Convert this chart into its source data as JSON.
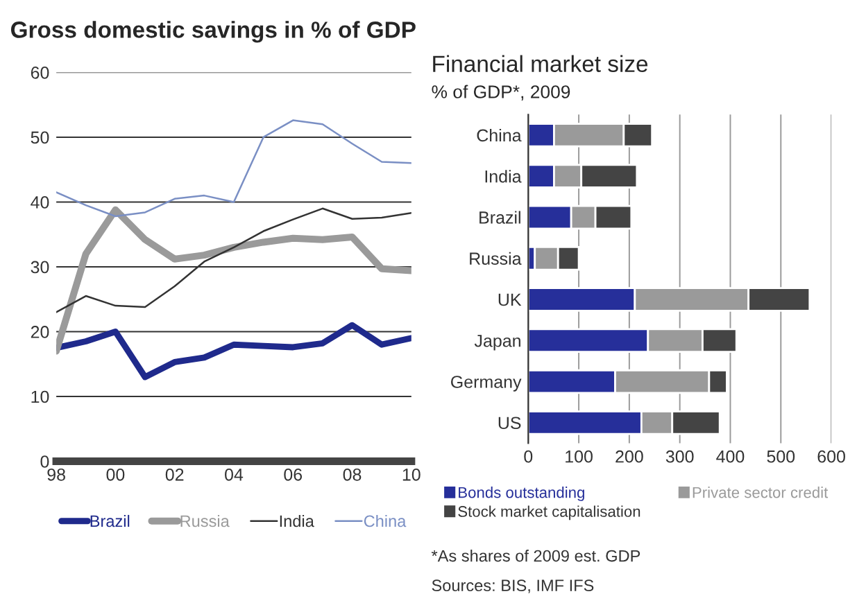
{
  "chart_data": [
    {
      "type": "line",
      "title": "Gross domestic savings in % of GDP",
      "x": [
        1998,
        1999,
        2000,
        2001,
        2002,
        2003,
        2004,
        2005,
        2006,
        2007,
        2008,
        2009,
        2010
      ],
      "series": [
        {
          "name": "Brazil",
          "color": "#1f2a8c",
          "values": [
            17.5,
            18.5,
            20,
            13,
            15.3,
            16,
            18,
            17.8,
            17.6,
            18.2,
            21,
            18,
            19
          ]
        },
        {
          "name": "Russia",
          "color": "#9a9a9a",
          "values": [
            17,
            32,
            38.8,
            34.2,
            31.2,
            31.8,
            33,
            33.8,
            34.4,
            34.2,
            34.6,
            29.7,
            29.4
          ]
        },
        {
          "name": "India",
          "color": "#333333",
          "values": [
            23,
            25.5,
            24,
            23.8,
            27,
            30.8,
            33,
            35.5,
            37.3,
            39,
            37.4,
            37.6,
            38.3
          ]
        },
        {
          "name": "China",
          "color": "#7a8fc4",
          "values": [
            41.5,
            39.5,
            37.8,
            38.4,
            40.5,
            41,
            40,
            50,
            52.6,
            52,
            49,
            46.2,
            46
          ]
        }
      ],
      "xlim": [
        1998,
        2010
      ],
      "xticks": [
        {
          "value": 1998,
          "label": "98"
        },
        {
          "value": 2000,
          "label": "00"
        },
        {
          "value": 2002,
          "label": "02"
        },
        {
          "value": 2004,
          "label": "04"
        },
        {
          "value": 2006,
          "label": "06"
        },
        {
          "value": 2008,
          "label": "08"
        },
        {
          "value": 2010,
          "label": "10"
        }
      ],
      "ylim": [
        0,
        60
      ],
      "yticks": [
        0,
        10,
        20,
        30,
        40,
        50,
        60
      ],
      "grid": "y",
      "legend": "bottom"
    },
    {
      "type": "bar",
      "title": "Financial market size",
      "subtitle": "% of GDP*, 2009",
      "orientation": "horizontal",
      "stacked": true,
      "categories": [
        "China",
        "India",
        "Brazil",
        "Russia",
        "UK",
        "Japan",
        "Germany",
        "US"
      ],
      "series": [
        {
          "name": "Bonds outstanding",
          "color": "#262f9a",
          "values": [
            51,
            51,
            85,
            13,
            211,
            237,
            172,
            224
          ]
        },
        {
          "name": "Private sector credit",
          "color": "#9a9a9a",
          "values": [
            138,
            54,
            48,
            46,
            225,
            108,
            186,
            61
          ]
        },
        {
          "name": "Stock market capitalisation",
          "color": "#444444",
          "values": [
            56,
            110,
            71,
            41,
            121,
            67,
            35,
            94
          ]
        }
      ],
      "xlim": [
        0,
        600
      ],
      "xticks": [
        0,
        100,
        200,
        300,
        400,
        500,
        600
      ],
      "grid": "x",
      "legend": "bottom",
      "annotations": [
        "*As shares of 2009 est. GDP",
        "Sources: BIS, IMF IFS"
      ]
    }
  ]
}
